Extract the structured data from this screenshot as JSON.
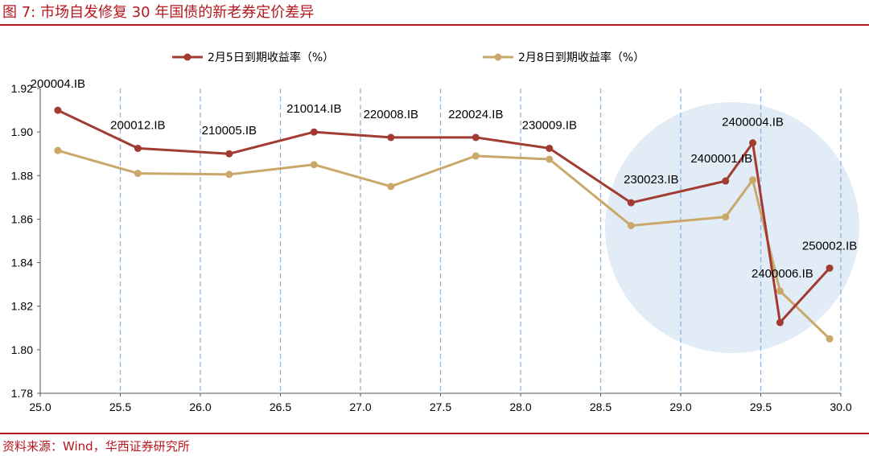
{
  "figure": {
    "title": "图 7:  市场自发修复 30 年国债的新老券定价差异",
    "source": "资料来源：Wind，华西证券研究所"
  },
  "chart_data": {
    "type": "line",
    "title": "市场自发修复 30 年国债的新老券定价差异",
    "xlabel": "",
    "ylabel": "",
    "xlim": [
      25.0,
      30.0
    ],
    "ylim": [
      1.78,
      1.92
    ],
    "x_ticks": [
      "25.0",
      "25.5",
      "26.0",
      "26.5",
      "27.0",
      "27.5",
      "28.0",
      "28.5",
      "29.0",
      "29.5",
      "30.0"
    ],
    "y_ticks": [
      "1.78",
      "1.80",
      "1.82",
      "1.84",
      "1.86",
      "1.88",
      "1.90",
      "1.92"
    ],
    "x": [
      25.11,
      25.61,
      26.18,
      26.71,
      27.19,
      27.72,
      28.18,
      28.69,
      29.28,
      29.45,
      29.62,
      29.93
    ],
    "point_labels": [
      "200004.IB",
      "200012.IB",
      "210005.IB",
      "210014.IB",
      "220008.IB",
      "220024.IB",
      "230009.IB",
      "230023.IB",
      "2400001.IB",
      "2400004.IB",
      "2400006.IB",
      "250002.IB"
    ],
    "series": [
      {
        "name": "2月5日到期收益率（%）",
        "color": "#a23b32",
        "values": [
          1.91,
          1.8925,
          1.89,
          1.9,
          1.8975,
          1.8975,
          1.8925,
          1.8675,
          1.8775,
          1.895,
          1.8125,
          1.8375
        ]
      },
      {
        "name": "2月8日到期收益率（%）",
        "color": "#c9a86a",
        "values": [
          1.8915,
          1.881,
          1.8805,
          1.885,
          1.875,
          1.889,
          1.8875,
          1.857,
          1.861,
          1.878,
          1.827,
          1.805
        ]
      }
    ],
    "grid": "vertical-dashed",
    "legend_position": "top",
    "annotation": "highlight circle around the 2024-2025 issues"
  }
}
